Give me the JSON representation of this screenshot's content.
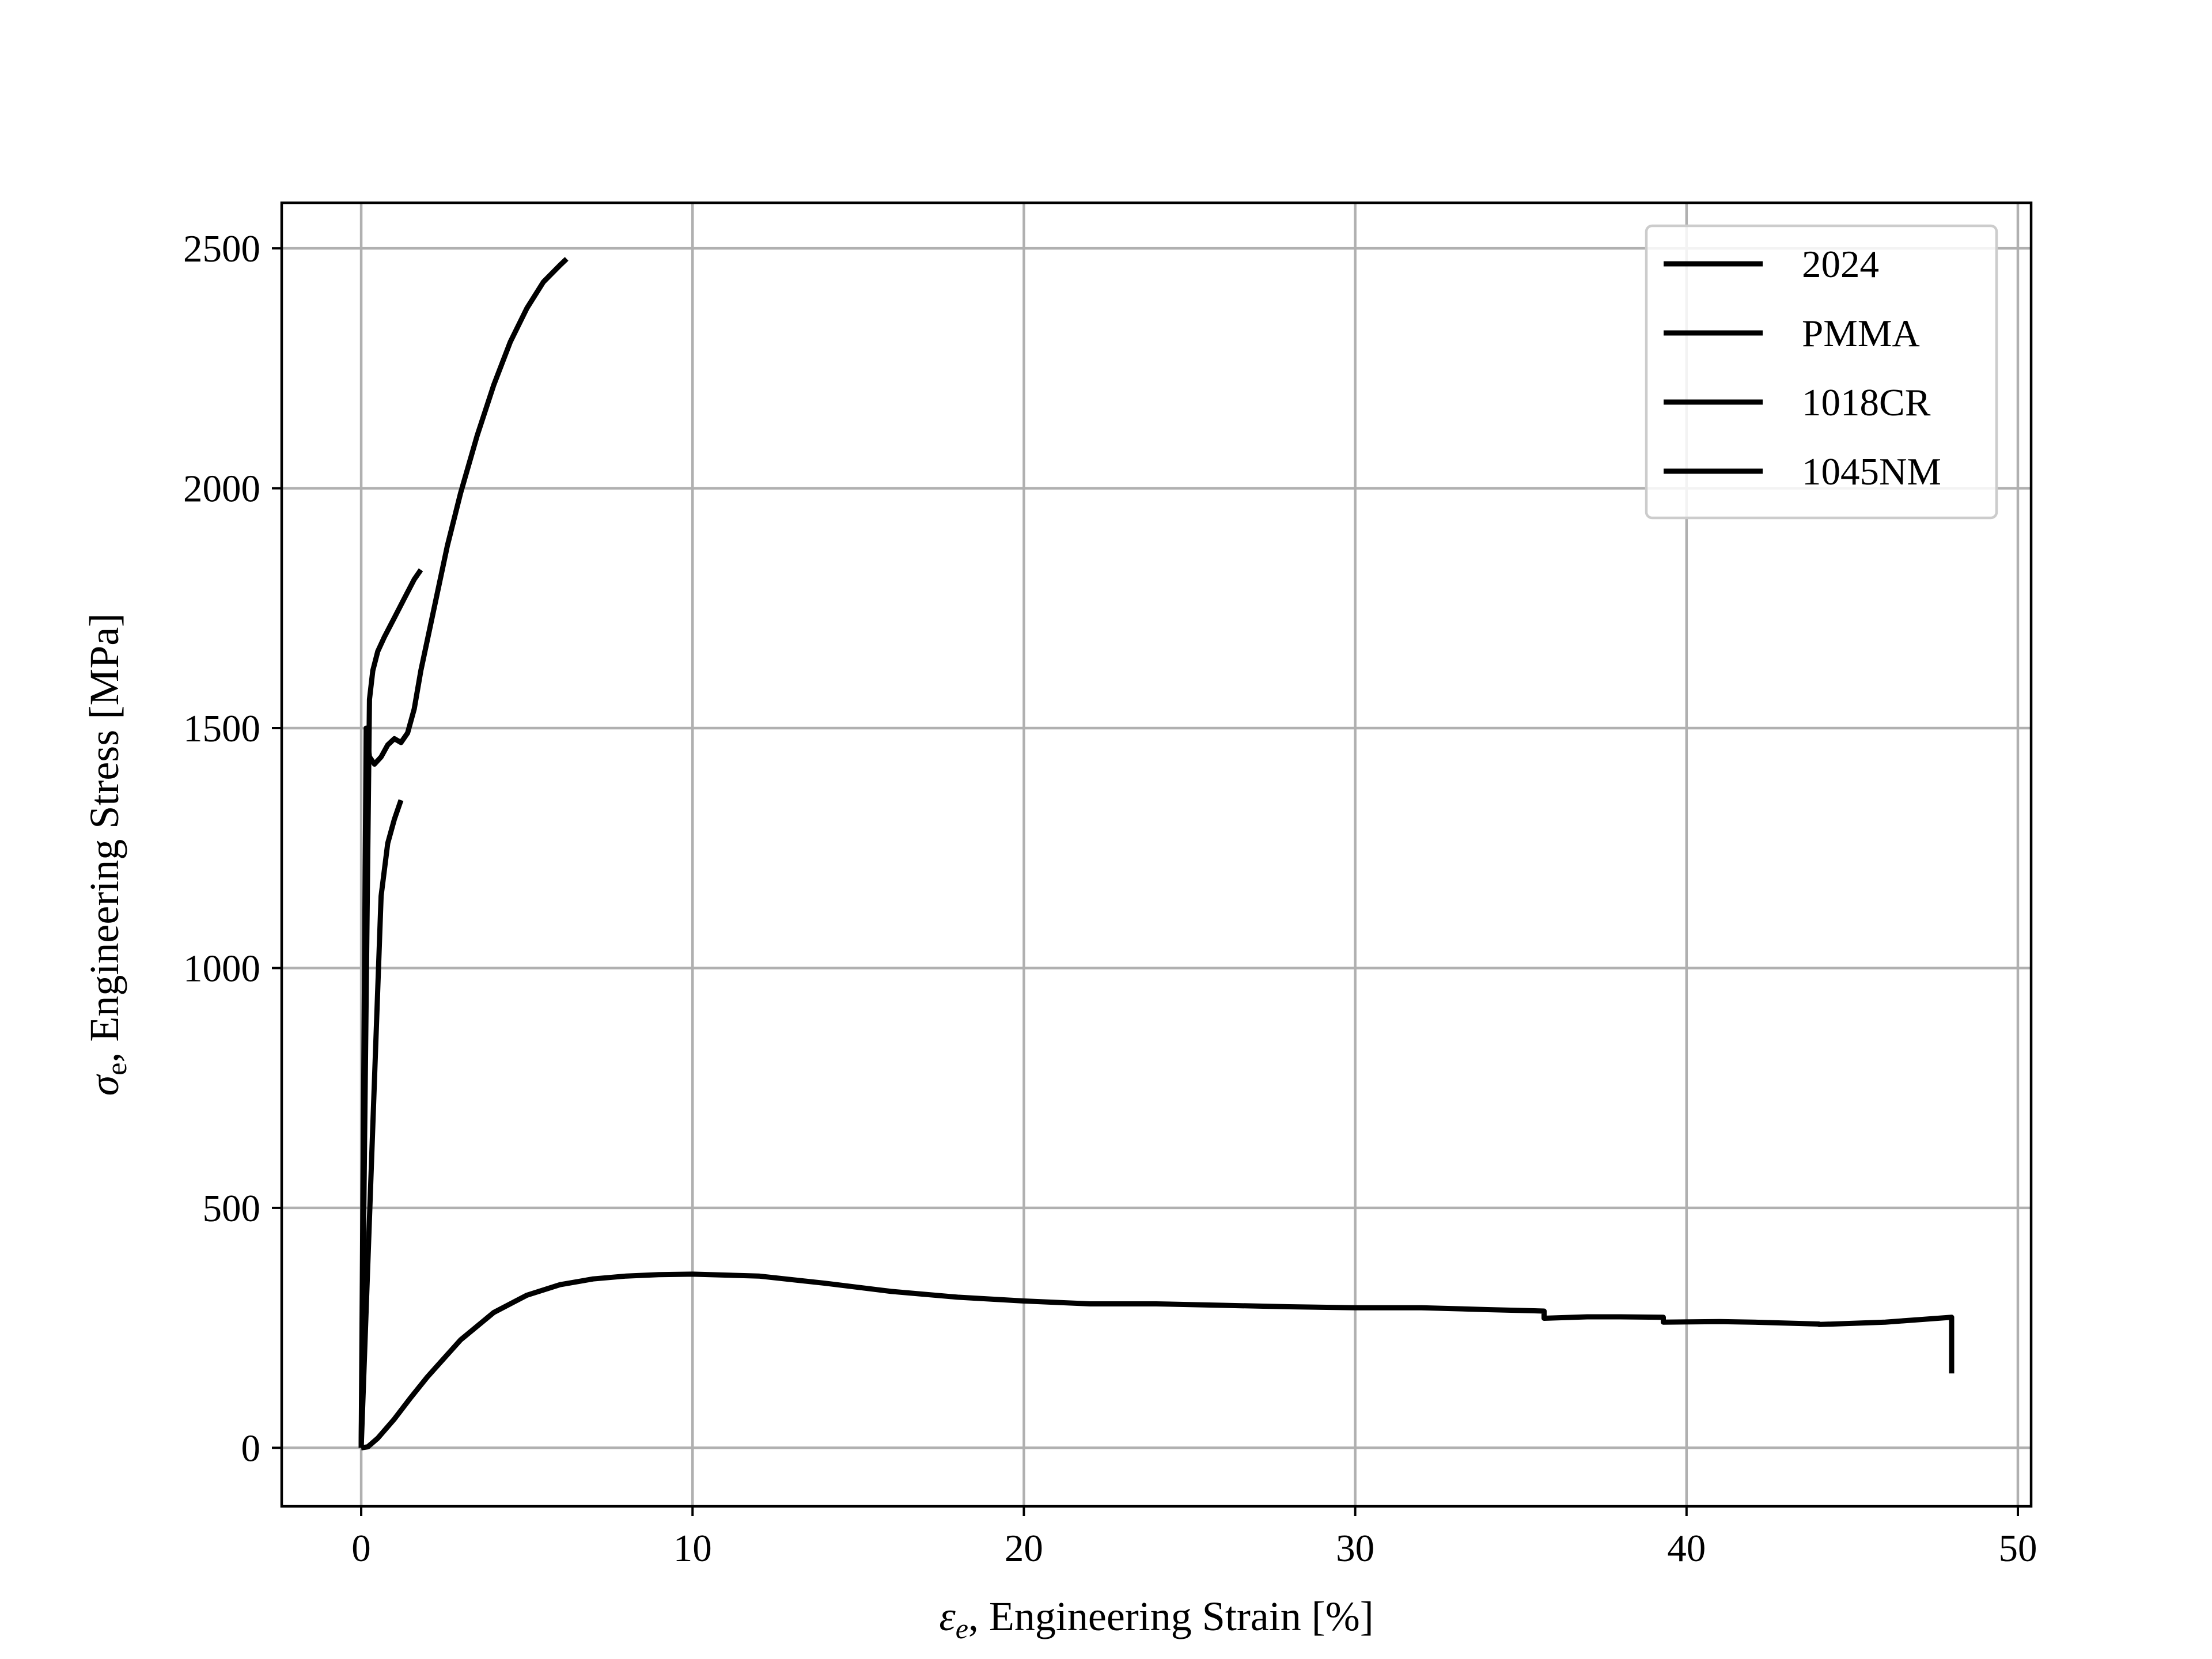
{
  "chart_data": {
    "type": "line",
    "title": "",
    "xlabel_symbol": "ε",
    "xlabel_sub": "e",
    "xlabel_text": ", Engineering Strain  [%]",
    "ylabel_symbol": "σ",
    "ylabel_sub": "e",
    "ylabel_text": ", Engineering Stress  [MPa]",
    "xlim": [
      -2.4,
      50.4
    ],
    "ylim": [
      -122,
      2595
    ],
    "xticks": [
      0,
      10,
      20,
      30,
      40,
      50
    ],
    "yticks": [
      0,
      500,
      1000,
      1500,
      2000,
      2500
    ],
    "grid": true,
    "legend_position": "upper right",
    "line_color": "#000000",
    "series": [
      {
        "name": "2024",
        "x": [
          0.0,
          0.2,
          0.5,
          1.0,
          1.5,
          2.0,
          3.0,
          4.0,
          5.0,
          6.0,
          7.0,
          8.0,
          9.0,
          10.0,
          12.0,
          14.0,
          16.0,
          18.0,
          20.0,
          22.0,
          24.0,
          26.0,
          28.0,
          30.0,
          32.0,
          34.0,
          35.7,
          35.7,
          37.0,
          38.0,
          39.3,
          39.3,
          41.0,
          42.0,
          44.0,
          44.0,
          46.0,
          47.0,
          48.0,
          48.0
        ],
        "y": [
          0,
          2,
          20,
          60,
          105,
          148,
          225,
          282,
          318,
          340,
          352,
          358,
          361,
          362,
          358,
          343,
          326,
          314,
          306,
          300,
          300,
          297,
          294,
          292,
          292,
          288,
          285,
          270,
          273,
          273,
          272,
          262,
          263,
          262,
          258,
          257,
          262,
          267,
          272,
          155
        ]
      },
      {
        "name": "PMMA",
        "x": [
          0.0,
          0.6,
          0.8,
          1.0,
          1.2
        ],
        "y": [
          0,
          1150,
          1260,
          1310,
          1350
        ]
      },
      {
        "name": "1018CR",
        "x": [
          0.0,
          0.25,
          0.35,
          0.5,
          0.7,
          1.0,
          1.3,
          1.6,
          1.8
        ],
        "y": [
          0,
          1560,
          1620,
          1660,
          1690,
          1730,
          1770,
          1810,
          1830
        ]
      },
      {
        "name": "1045NM",
        "x": [
          0.0,
          0.15,
          0.25,
          0.4,
          0.6,
          0.8,
          1.0,
          1.2,
          1.4,
          1.6,
          1.8,
          2.2,
          2.6,
          3.0,
          3.5,
          4.0,
          4.5,
          5.0,
          5.5,
          6.0,
          6.2
        ],
        "y": [
          0,
          1500,
          1440,
          1425,
          1440,
          1465,
          1478,
          1470,
          1490,
          1540,
          1620,
          1750,
          1880,
          1990,
          2110,
          2215,
          2305,
          2375,
          2430,
          2465,
          2478
        ]
      }
    ]
  }
}
